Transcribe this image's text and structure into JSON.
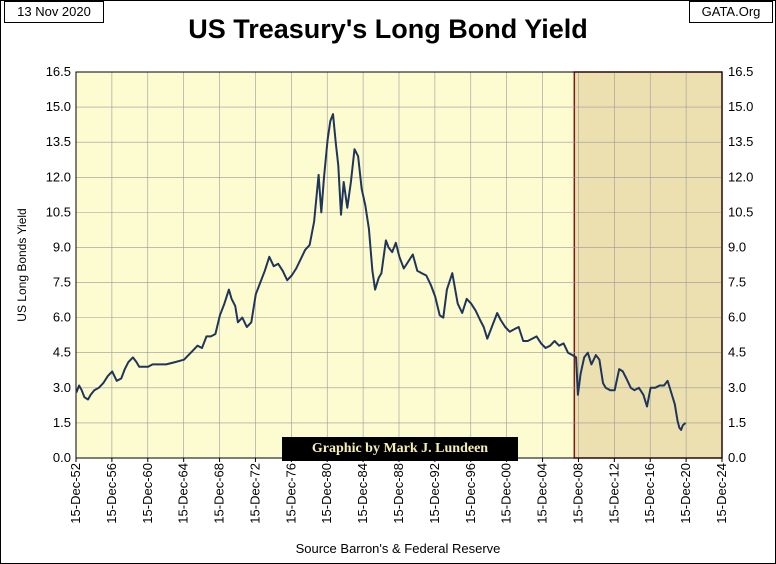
{
  "header": {
    "date": "13 Nov 2020",
    "source_site": "GATA.Org",
    "credit": "Graphic by Mark J. Lundeen"
  },
  "colors": {
    "plot_bg": "#fdfbd0",
    "shade_bg": "#ece0b0",
    "shade_border": "#7a1a12",
    "line": "#1f3559",
    "grid": "#9a9a9a"
  },
  "chart_data": {
    "type": "line",
    "title": "US Treasury's Long Bond Yield",
    "ylabel": "US Long Bonds Yield",
    "xlabel": "Source Barron's & Federal Reserve",
    "ylim": [
      0,
      16.5
    ],
    "yticks": [
      "0.0",
      "1.5",
      "3.0",
      "4.5",
      "6.0",
      "7.5",
      "9.0",
      "10.5",
      "12.0",
      "13.5",
      "15.0",
      "16.5"
    ],
    "xlim": [
      1952.96,
      2024.96
    ],
    "xticks": [
      "15-Dec-52",
      "15-Dec-56",
      "15-Dec-60",
      "15-Dec-64",
      "15-Dec-68",
      "15-Dec-72",
      "15-Dec-76",
      "15-Dec-80",
      "15-Dec-84",
      "15-Dec-88",
      "15-Dec-92",
      "15-Dec-96",
      "15-Dec-00",
      "15-Dec-04",
      "15-Dec-08",
      "15-Dec-12",
      "15-Dec-16",
      "15-Dec-20",
      "15-Dec-24"
    ],
    "grid": true,
    "shaded_region": [
      2008.5,
      2024.96
    ],
    "series": [
      {
        "x": [
          1953,
          1953.3,
          1953.6,
          1953.9,
          1954.3,
          1954.6,
          1955,
          1955.5,
          1956,
          1956.5,
          1957,
          1957.5,
          1958,
          1958.4,
          1958.8,
          1959.3,
          1959.7,
          1960,
          1960.5,
          1961,
          1961.5,
          1962,
          1963,
          1964,
          1965,
          1966,
          1966.5,
          1967,
          1967.5,
          1968,
          1968.5,
          1969,
          1969.5,
          1970,
          1970.3,
          1970.7,
          1971,
          1971.5,
          1972,
          1972.5,
          1973,
          1973.5,
          1974,
          1974.5,
          1975,
          1975.5,
          1976,
          1976.5,
          1977,
          1977.5,
          1978,
          1978.5,
          1979,
          1979.5,
          1980,
          1980.3,
          1980.6,
          1981,
          1981.3,
          1981.6,
          1981.9,
          1982.2,
          1982.5,
          1982.8,
          1983.2,
          1983.6,
          1984,
          1984.4,
          1984.8,
          1985.2,
          1985.6,
          1986,
          1986.3,
          1986.7,
          1987,
          1987.5,
          1987.8,
          1988.2,
          1988.6,
          1989,
          1989.5,
          1990,
          1990.5,
          1991,
          1991.5,
          1992,
          1992.5,
          1993,
          1993.5,
          1993.9,
          1994.3,
          1994.9,
          1995.5,
          1996,
          1996.5,
          1997,
          1997.5,
          1998,
          1998.4,
          1998.8,
          1999.3,
          1999.9,
          2000.3,
          2000.8,
          2001.3,
          2001.8,
          2002.3,
          2002.8,
          2003.3,
          2003.8,
          2004.3,
          2004.8,
          2005.3,
          2005.8,
          2006.3,
          2006.8,
          2007.3,
          2007.8,
          2008.3,
          2008.7,
          2008.9,
          2009.2,
          2009.6,
          2010,
          2010.4,
          2010.9,
          2011.3,
          2011.7,
          2012,
          2012.5,
          2013,
          2013.5,
          2013.9,
          2014.3,
          2014.8,
          2015.2,
          2015.7,
          2016.2,
          2016.6,
          2017,
          2017.5,
          2018,
          2018.5,
          2018.9,
          2019.3,
          2019.7,
          2020,
          2020.2,
          2020.4,
          2020.6,
          2020.9
        ],
        "y": [
          2.8,
          3.1,
          2.9,
          2.6,
          2.5,
          2.7,
          2.9,
          3.0,
          3.2,
          3.5,
          3.7,
          3.3,
          3.4,
          3.8,
          4.1,
          4.3,
          4.1,
          3.9,
          3.9,
          3.9,
          4.0,
          4.0,
          4.0,
          4.1,
          4.2,
          4.6,
          4.8,
          4.7,
          5.2,
          5.2,
          5.3,
          6.1,
          6.6,
          7.2,
          6.8,
          6.5,
          5.8,
          6.0,
          5.6,
          5.8,
          7.0,
          7.5,
          8.0,
          8.6,
          8.2,
          8.3,
          8.0,
          7.6,
          7.8,
          8.1,
          8.5,
          8.9,
          9.1,
          10.1,
          12.1,
          10.5,
          12.0,
          13.6,
          14.4,
          14.7,
          13.5,
          12.5,
          10.4,
          11.8,
          10.7,
          11.8,
          13.2,
          12.9,
          11.5,
          10.8,
          9.8,
          8.0,
          7.2,
          7.7,
          7.9,
          9.3,
          9.0,
          8.8,
          9.2,
          8.6,
          8.1,
          8.4,
          8.7,
          8.0,
          7.9,
          7.8,
          7.4,
          6.9,
          6.1,
          6.0,
          7.2,
          7.9,
          6.6,
          6.2,
          6.8,
          6.6,
          6.3,
          5.9,
          5.6,
          5.1,
          5.6,
          6.2,
          5.9,
          5.6,
          5.4,
          5.5,
          5.6,
          5.0,
          5.0,
          5.1,
          5.2,
          4.9,
          4.7,
          4.8,
          5.0,
          4.8,
          4.9,
          4.5,
          4.4,
          4.3,
          2.7,
          3.6,
          4.3,
          4.5,
          4.0,
          4.4,
          4.2,
          3.2,
          3.0,
          2.9,
          2.9,
          3.8,
          3.7,
          3.4,
          3.0,
          2.9,
          3.0,
          2.7,
          2.2,
          3.0,
          3.0,
          3.1,
          3.1,
          3.3,
          2.8,
          2.3,
          1.6,
          1.3,
          1.2,
          1.4,
          1.5
        ]
      }
    ]
  }
}
